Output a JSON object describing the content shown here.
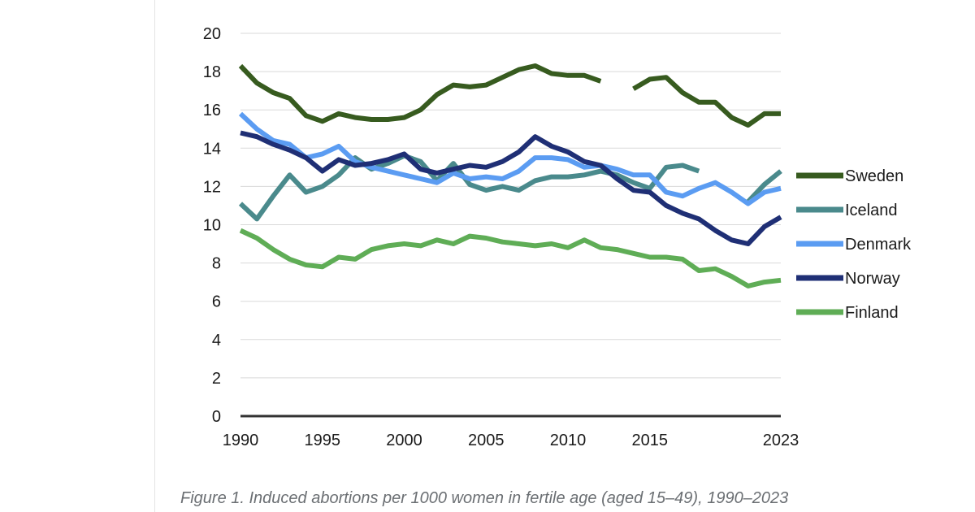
{
  "caption": "Figure 1. Induced abortions per 1000 women in fertile age (aged 15–49), 1990–2023",
  "chart_data": {
    "type": "line",
    "ylim": [
      0,
      20
    ],
    "yticks": [
      0,
      2,
      4,
      6,
      8,
      10,
      12,
      14,
      16,
      18,
      20
    ],
    "xlim": [
      1990,
      2023
    ],
    "xticks": [
      1990,
      1995,
      2000,
      2005,
      2010,
      2015,
      2023
    ],
    "grid": true,
    "legend_position": "right",
    "series": [
      {
        "name": "Sweden",
        "color": "#375b1f",
        "points": [
          [
            1990,
            18.3
          ],
          [
            1991,
            17.4
          ],
          [
            1992,
            16.9
          ],
          [
            1993,
            16.6
          ],
          [
            1994,
            15.7
          ],
          [
            1995,
            15.4
          ],
          [
            1996,
            15.8
          ],
          [
            1997,
            15.6
          ],
          [
            1998,
            15.5
          ],
          [
            1999,
            15.5
          ],
          [
            2000,
            15.6
          ],
          [
            2001,
            16.0
          ],
          [
            2002,
            16.8
          ],
          [
            2003,
            17.3
          ],
          [
            2004,
            17.2
          ],
          [
            2005,
            17.3
          ],
          [
            2006,
            17.7
          ],
          [
            2007,
            18.1
          ],
          [
            2008,
            18.3
          ],
          [
            2009,
            17.9
          ],
          [
            2010,
            17.8
          ],
          [
            2011,
            17.8
          ],
          [
            2012,
            17.5
          ],
          null,
          [
            2014,
            17.1
          ],
          [
            2015,
            17.6
          ],
          [
            2016,
            17.7
          ],
          [
            2017,
            16.9
          ],
          [
            2018,
            16.4
          ],
          [
            2019,
            16.4
          ],
          [
            2020,
            15.6
          ],
          [
            2021,
            15.2
          ],
          [
            2022,
            15.8
          ],
          [
            2023,
            15.8
          ]
        ]
      },
      {
        "name": "Iceland",
        "color": "#4a8a8c",
        "points": [
          [
            1990,
            11.1
          ],
          [
            1991,
            10.3
          ],
          [
            1992,
            11.5
          ],
          [
            1993,
            12.6
          ],
          [
            1994,
            11.7
          ],
          [
            1995,
            12.0
          ],
          [
            1996,
            12.6
          ],
          [
            1997,
            13.5
          ],
          [
            1998,
            12.9
          ],
          [
            1999,
            13.2
          ],
          [
            2000,
            13.6
          ],
          [
            2001,
            13.3
          ],
          [
            2002,
            12.3
          ],
          [
            2003,
            13.2
          ],
          [
            2004,
            12.1
          ],
          [
            2005,
            11.8
          ],
          [
            2006,
            12.0
          ],
          [
            2007,
            11.8
          ],
          [
            2008,
            12.3
          ],
          [
            2009,
            12.5
          ],
          [
            2010,
            12.5
          ],
          [
            2011,
            12.6
          ],
          [
            2012,
            12.8
          ],
          [
            2013,
            12.6
          ],
          [
            2014,
            12.2
          ],
          [
            2015,
            11.9
          ],
          [
            2016,
            13.0
          ],
          [
            2017,
            13.1
          ],
          [
            2018,
            12.8
          ]
        ]
      },
      {
        "name": "Iceland-2",
        "color": "#4a8a8c",
        "points": [
          [
            2021,
            11.2
          ],
          [
            2022,
            12.1
          ],
          [
            2023,
            12.8
          ]
        ]
      },
      {
        "name": "Denmark",
        "color": "#5b9cf2",
        "points": [
          [
            1990,
            15.8
          ],
          [
            1991,
            15.0
          ],
          [
            1992,
            14.4
          ],
          [
            1993,
            14.2
          ],
          [
            1994,
            13.5
          ],
          [
            1995,
            13.7
          ],
          [
            1996,
            14.1
          ],
          [
            1997,
            13.3
          ],
          [
            1998,
            13.0
          ],
          [
            1999,
            12.8
          ],
          [
            2000,
            12.6
          ],
          [
            2001,
            12.4
          ],
          [
            2002,
            12.2
          ],
          [
            2003,
            12.7
          ],
          [
            2004,
            12.4
          ],
          [
            2005,
            12.5
          ],
          [
            2006,
            12.4
          ],
          [
            2007,
            12.8
          ],
          [
            2008,
            13.5
          ],
          [
            2009,
            13.5
          ],
          [
            2010,
            13.4
          ],
          [
            2011,
            13.0
          ],
          [
            2012,
            13.1
          ],
          [
            2013,
            12.9
          ],
          [
            2014,
            12.6
          ],
          [
            2015,
            12.6
          ],
          [
            2016,
            11.7
          ],
          [
            2017,
            11.5
          ],
          [
            2018,
            11.9
          ],
          [
            2019,
            12.2
          ],
          [
            2020,
            11.7
          ],
          [
            2021,
            11.1
          ],
          [
            2022,
            11.7
          ],
          [
            2023,
            11.9
          ]
        ]
      },
      {
        "name": "Norway",
        "color": "#1f2f75",
        "points": [
          [
            1990,
            14.8
          ],
          [
            1991,
            14.6
          ],
          [
            1992,
            14.2
          ],
          [
            1993,
            13.9
          ],
          [
            1994,
            13.5
          ],
          [
            1995,
            12.8
          ],
          [
            1996,
            13.4
          ],
          [
            1997,
            13.1
          ],
          [
            1998,
            13.2
          ],
          [
            1999,
            13.4
          ],
          [
            2000,
            13.7
          ],
          [
            2001,
            12.9
          ],
          [
            2002,
            12.7
          ],
          [
            2003,
            12.9
          ],
          [
            2004,
            13.1
          ],
          [
            2005,
            13.0
          ],
          [
            2006,
            13.3
          ],
          [
            2007,
            13.8
          ],
          [
            2008,
            14.6
          ],
          [
            2009,
            14.1
          ],
          [
            2010,
            13.8
          ],
          [
            2011,
            13.3
          ],
          [
            2012,
            13.1
          ],
          [
            2013,
            12.4
          ],
          [
            2014,
            11.8
          ],
          [
            2015,
            11.7
          ],
          [
            2016,
            11.0
          ],
          [
            2017,
            10.6
          ],
          [
            2018,
            10.3
          ],
          [
            2019,
            9.7
          ],
          [
            2020,
            9.2
          ],
          [
            2021,
            9.0
          ],
          [
            2022,
            9.9
          ],
          [
            2023,
            10.4
          ]
        ]
      },
      {
        "name": "Finland",
        "color": "#5fad56",
        "points": [
          [
            1990,
            9.7
          ],
          [
            1991,
            9.3
          ],
          [
            1992,
            8.7
          ],
          [
            1993,
            8.2
          ],
          [
            1994,
            7.9
          ],
          [
            1995,
            7.8
          ],
          [
            1996,
            8.3
          ],
          [
            1997,
            8.2
          ],
          [
            1998,
            8.7
          ],
          [
            1999,
            8.9
          ],
          [
            2000,
            9.0
          ],
          [
            2001,
            8.9
          ],
          [
            2002,
            9.2
          ],
          [
            2003,
            9.0
          ],
          [
            2004,
            9.4
          ],
          [
            2005,
            9.3
          ],
          [
            2006,
            9.1
          ],
          [
            2007,
            9.0
          ],
          [
            2008,
            8.9
          ],
          [
            2009,
            9.0
          ],
          [
            2010,
            8.8
          ],
          [
            2011,
            9.2
          ],
          [
            2012,
            8.8
          ],
          [
            2013,
            8.7
          ],
          [
            2014,
            8.5
          ],
          [
            2015,
            8.3
          ],
          [
            2016,
            8.3
          ],
          [
            2017,
            8.2
          ],
          [
            2018,
            7.6
          ],
          [
            2019,
            7.7
          ],
          [
            2020,
            7.3
          ],
          [
            2021,
            6.8
          ],
          [
            2022,
            7.0
          ],
          [
            2023,
            7.1
          ]
        ]
      }
    ],
    "legend": [
      {
        "name": "Sweden",
        "color": "#375b1f"
      },
      {
        "name": "Iceland",
        "color": "#4a8a8c"
      },
      {
        "name": "Denmark",
        "color": "#5b9cf2"
      },
      {
        "name": "Norway",
        "color": "#1f2f75"
      },
      {
        "name": "Finland",
        "color": "#5fad56"
      }
    ]
  }
}
